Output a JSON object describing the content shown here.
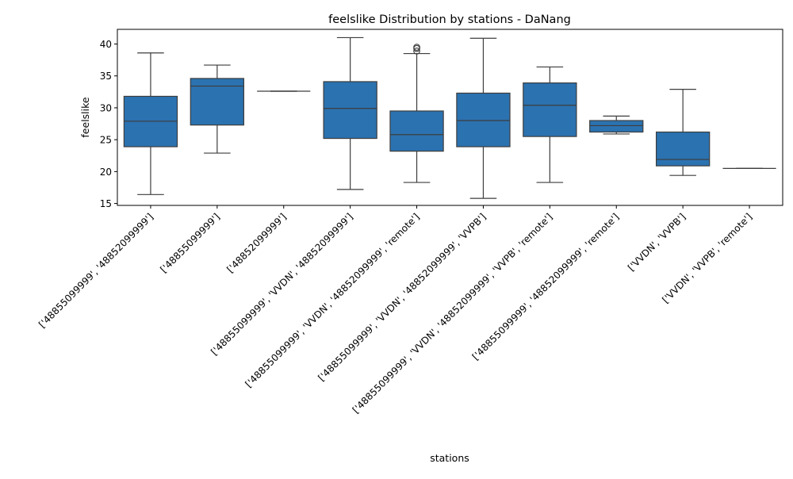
{
  "chart_data": {
    "type": "box",
    "title": "feelslike Distribution by stations - DaNang",
    "xlabel": "stations",
    "ylabel": "feelslike",
    "ylim": [
      14.7,
      42.3
    ],
    "yticks": [
      15,
      20,
      25,
      30,
      35,
      40
    ],
    "box_color": "#2b72b0",
    "line_color": "#3d3d3d",
    "grid": false,
    "legend": "none",
    "categories": [
      "['48855099999', '48852099999']",
      "['48855099999']",
      "['48852099999']",
      "['48855099999', 'VVDN', '48852099999']",
      "['48855099999', 'VVDN', '48852099999', 'remote']",
      "['48855099999', 'VVDN', '48852099999', 'VVPB']",
      "['48855099999', 'VVDN', '48852099999', 'VVPB', 'remote']",
      "['48855099999', '48852099999', 'remote']",
      "['VVDN', 'VVPB']",
      "['VVDN', 'VVPB', 'remote']"
    ],
    "boxes": [
      {
        "whisker_low": 16.4,
        "q1": 23.9,
        "median": 27.9,
        "q3": 31.8,
        "whisker_high": 38.6,
        "outliers": []
      },
      {
        "whisker_low": 22.9,
        "q1": 27.3,
        "median": 33.4,
        "q3": 34.6,
        "whisker_high": 36.7,
        "outliers": []
      },
      {
        "whisker_low": 32.6,
        "q1": 32.6,
        "median": 32.6,
        "q3": 32.6,
        "whisker_high": 32.6,
        "outliers": []
      },
      {
        "whisker_low": 17.2,
        "q1": 25.2,
        "median": 29.9,
        "q3": 34.1,
        "whisker_high": 41.0,
        "outliers": []
      },
      {
        "whisker_low": 18.3,
        "q1": 23.2,
        "median": 25.8,
        "q3": 29.5,
        "whisker_high": 38.5,
        "outliers": [
          38.9,
          39.3,
          39.5
        ]
      },
      {
        "whisker_low": 15.8,
        "q1": 23.9,
        "median": 28.0,
        "q3": 32.3,
        "whisker_high": 40.9,
        "outliers": []
      },
      {
        "whisker_low": 18.3,
        "q1": 25.5,
        "median": 30.4,
        "q3": 33.9,
        "whisker_high": 36.4,
        "outliers": []
      },
      {
        "whisker_low": 25.9,
        "q1": 26.2,
        "median": 27.2,
        "q3": 28.0,
        "whisker_high": 28.7,
        "outliers": []
      },
      {
        "whisker_low": 19.4,
        "q1": 20.9,
        "median": 21.9,
        "q3": 26.2,
        "whisker_high": 32.9,
        "outliers": []
      },
      {
        "whisker_low": 20.5,
        "q1": 20.5,
        "median": 20.5,
        "q3": 20.5,
        "whisker_high": 20.5,
        "outliers": []
      }
    ]
  }
}
